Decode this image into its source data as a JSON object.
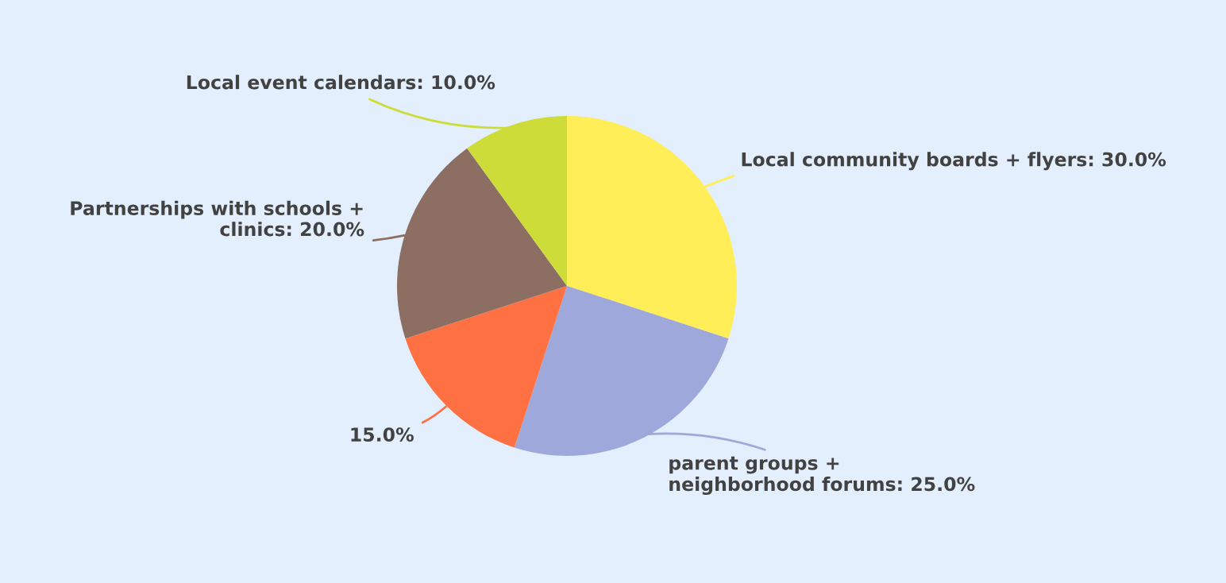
{
  "chart_data": {
    "type": "pie",
    "categories": [
      "Local community boards + flyers",
      "parent groups +\nneighborhood forums",
      null,
      "Partnerships with schools +\nclinics",
      "Local event calendars"
    ],
    "values": [
      30,
      25,
      15,
      20,
      10
    ],
    "value_labels": [
      "30.0%",
      "25.0%",
      "15.0%",
      "20.0%",
      "10.0%"
    ],
    "colors": [
      "#ffee58",
      "#9fa8da",
      "#ff7043",
      "#8d6e63",
      "#cddc39"
    ],
    "legend": false
  }
}
